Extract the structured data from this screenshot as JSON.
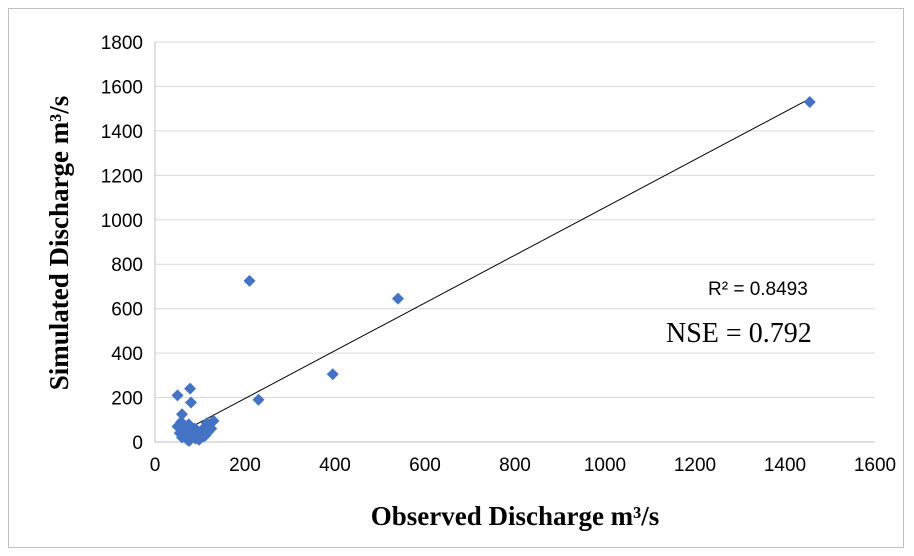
{
  "chart_data": {
    "type": "scatter",
    "xlabel": "Observed Discharge m³/s",
    "ylabel": "Simulated Discharge m³/s",
    "xlim": [
      0,
      1600
    ],
    "ylim": [
      0,
      1800
    ],
    "xticks": [
      0,
      200,
      400,
      600,
      800,
      1000,
      1200,
      1400,
      1600
    ],
    "yticks": [
      0,
      200,
      400,
      600,
      800,
      1000,
      1200,
      1400,
      1600,
      1800
    ],
    "grid": "horizontal",
    "marker_color": "#4472c4",
    "points": [
      [
        50,
        210
      ],
      [
        78,
        240
      ],
      [
        210,
        725
      ],
      [
        230,
        190
      ],
      [
        80,
        178
      ],
      [
        60,
        125
      ],
      [
        395,
        305
      ],
      [
        540,
        645
      ],
      [
        1455,
        1530
      ],
      [
        50,
        70
      ],
      [
        55,
        40
      ],
      [
        60,
        20
      ],
      [
        65,
        55
      ],
      [
        70,
        30
      ],
      [
        72,
        10
      ],
      [
        75,
        80
      ],
      [
        80,
        45
      ],
      [
        85,
        25
      ],
      [
        88,
        60
      ],
      [
        90,
        15
      ],
      [
        95,
        40
      ],
      [
        100,
        20
      ],
      [
        105,
        50
      ],
      [
        110,
        65
      ],
      [
        112,
        30
      ],
      [
        115,
        85
      ],
      [
        118,
        45
      ],
      [
        120,
        75
      ],
      [
        125,
        60
      ],
      [
        130,
        95
      ],
      [
        62,
        70
      ],
      [
        68,
        45
      ],
      [
        76,
        5
      ],
      [
        84,
        35
      ],
      [
        98,
        10
      ],
      [
        108,
        25
      ],
      [
        58,
        90
      ],
      [
        92,
        55
      ]
    ],
    "trendline": {
      "x": [
        55,
        1455
      ],
      "y": [
        40,
        1545
      ]
    },
    "annotations": {
      "r2": "R² = 0.8493",
      "nse": "NSE = 0.792"
    }
  }
}
